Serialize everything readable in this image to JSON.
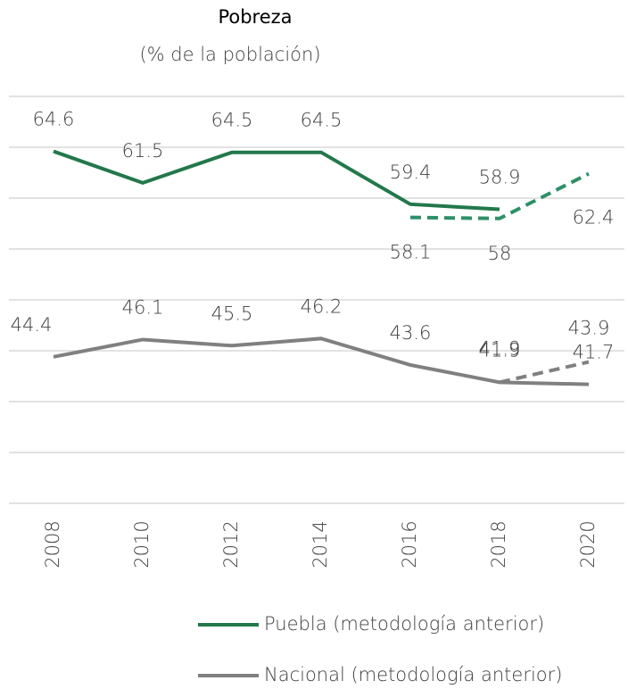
{
  "chart_data": {
    "type": "line",
    "title": "Pobreza",
    "subtitle": "(% de la población)",
    "categories": [
      "2008",
      "2010",
      "2012",
      "2014",
      "2016",
      "2018",
      "2020"
    ],
    "ylim": [
      30,
      70
    ],
    "yticks": [
      30,
      35,
      40,
      45,
      50,
      55,
      60,
      65,
      70
    ],
    "grid": true,
    "series": [
      {
        "name": "Puebla (metodología anterior)",
        "color": "#22784a",
        "values": [
          64.6,
          61.5,
          64.5,
          64.5,
          59.4,
          58.9,
          null
        ]
      },
      {
        "color": "#2e9068",
        "dashed": true,
        "values": [
          null,
          null,
          null,
          null,
          58.1,
          58.0,
          62.4
        ]
      },
      {
        "name": "Nacional (metodología anterior)",
        "color": "#808080",
        "values": [
          44.4,
          46.1,
          45.5,
          46.2,
          43.6,
          41.9,
          41.7
        ]
      },
      {
        "color": "#808080",
        "dashed": true,
        "values": [
          null,
          null,
          null,
          null,
          null,
          41.9,
          43.9
        ]
      }
    ]
  }
}
